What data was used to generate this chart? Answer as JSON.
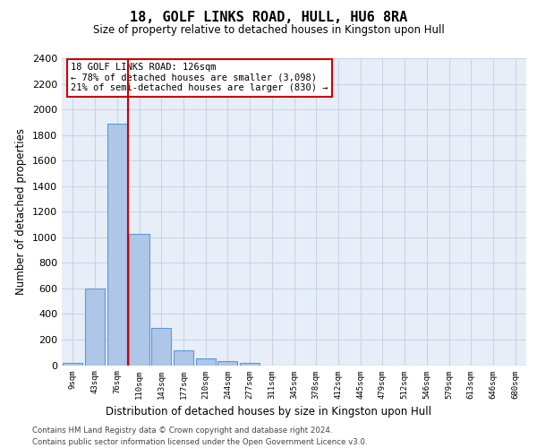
{
  "title": "18, GOLF LINKS ROAD, HULL, HU6 8RA",
  "subtitle": "Size of property relative to detached houses in Kingston upon Hull",
  "xlabel": "Distribution of detached houses by size in Kingston upon Hull",
  "ylabel": "Number of detached properties",
  "footer_line1": "Contains HM Land Registry data © Crown copyright and database right 2024.",
  "footer_line2": "Contains public sector information licensed under the Open Government Licence v3.0.",
  "bin_labels": [
    "9sqm",
    "43sqm",
    "76sqm",
    "110sqm",
    "143sqm",
    "177sqm",
    "210sqm",
    "244sqm",
    "277sqm",
    "311sqm",
    "345sqm",
    "378sqm",
    "412sqm",
    "445sqm",
    "479sqm",
    "512sqm",
    "546sqm",
    "579sqm",
    "613sqm",
    "646sqm",
    "680sqm"
  ],
  "bar_values": [
    20,
    600,
    1890,
    1030,
    290,
    115,
    50,
    30,
    20,
    0,
    0,
    0,
    0,
    0,
    0,
    0,
    0,
    0,
    0,
    0,
    0
  ],
  "bar_color": "#aec6e8",
  "bar_edge_color": "#5b9bd5",
  "property_line_x": 2.5,
  "property_line_color": "#cc0000",
  "annotation_text": "18 GOLF LINKS ROAD: 126sqm\n← 78% of detached houses are smaller (3,098)\n21% of semi-detached houses are larger (830) →",
  "annotation_box_color": "#cc0000",
  "ylim": [
    0,
    2400
  ],
  "yticks": [
    0,
    200,
    400,
    600,
    800,
    1000,
    1200,
    1400,
    1600,
    1800,
    2000,
    2200,
    2400
  ],
  "grid_color": "#c8d4e8",
  "axes_background": "#e8eef8"
}
